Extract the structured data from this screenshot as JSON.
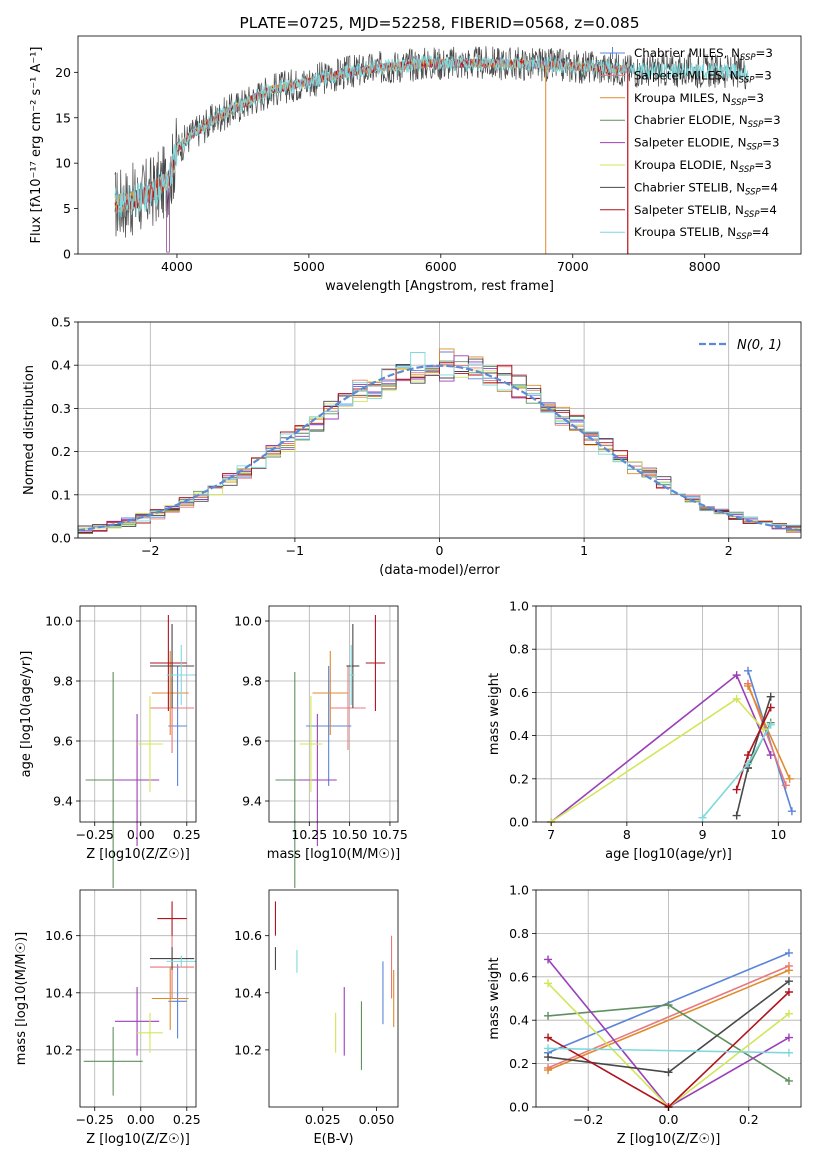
{
  "colors": {
    "chabrier_miles": "#5b84d8",
    "salpeter_miles": "#e8787e",
    "kroupa_miles": "#e08a2c",
    "chabrier_elodie": "#5f8f5f",
    "salpeter_elodie": "#9a3fb8",
    "kroupa_elodie": "#d2e65a",
    "chabrier_stelib": "#484848",
    "salpeter_stelib": "#b0141e",
    "kroupa_stelib": "#7fd9dc",
    "gaussian": "#5b8ad6",
    "grid": "#b0b0b0"
  },
  "chart_data": [
    {
      "id": "spectrum",
      "type": "line",
      "title": "PLATE=0725, MJD=52258, FIBERID=0568, z=0.085",
      "xlabel": "wavelength [Angstrom, rest frame]",
      "ylabel": "Flux [fλ10⁻¹⁷ erg cm⁻² s⁻¹ A⁻¹]",
      "xlim": [
        3250,
        8730
      ],
      "ylim": [
        0,
        24
      ],
      "xticks": [
        "4000",
        "5000",
        "6000",
        "7000",
        "8000"
      ],
      "yticks": [
        "0",
        "5",
        "10",
        "15",
        "20"
      ],
      "grid": false,
      "legend_position": "right",
      "legend": [
        "Chabrier MILES, NSSP=3",
        "Salpeter MILES, NSSP=3",
        "Kroupa MILES, NSSP=3",
        "Chabrier ELODIE, NSSP=3",
        "Salpeter ELODIE, NSSP=3",
        "Kroupa ELODIE, NSSP=3",
        "Chabrier STELIB, NSSP=4",
        "Salpeter STELIB, NSSP=4",
        "Kroupa STELIB, NSSP=4"
      ],
      "continuum": {
        "x": [
          3530,
          3700,
          3850,
          3950,
          4000,
          4100,
          4300,
          4500,
          4700,
          5000,
          5300,
          5600,
          5900,
          6200,
          6500,
          6800,
          7100,
          7300,
          7500,
          8000,
          8400
        ],
        "y": [
          5.5,
          6.0,
          7.2,
          8.5,
          11.5,
          13.0,
          15.0,
          16.5,
          18.0,
          19.0,
          20.0,
          20.6,
          21.0,
          21.0,
          21.0,
          20.8,
          20.6,
          20.4,
          20.2,
          20.2,
          20.0
        ]
      }
    },
    {
      "id": "residuals",
      "type": "histogram",
      "xlabel": "(data-model)/error",
      "ylabel": "Normed distribution",
      "xlim": [
        -2.5,
        2.5
      ],
      "ylim": [
        0,
        0.5
      ],
      "xticks": [
        "−2",
        "−1",
        "0",
        "1",
        "2"
      ],
      "yticks": [
        "0.0",
        "0.1",
        "0.2",
        "0.3",
        "0.4",
        "0.5"
      ],
      "grid": true,
      "legend_position": "top-right",
      "legend": [
        "N(0, 1)"
      ],
      "bin_width": 0.1
    },
    {
      "id": "age_vs_Z",
      "type": "errorbar",
      "xlabel": "Z [log10(Z/Z☉)]",
      "ylabel": "age  [log10(age/yr)]",
      "xlim": [
        -0.33,
        0.3
      ],
      "ylim": [
        9.33,
        10.05
      ],
      "xticks": [
        "−0.25",
        "0.00",
        "0.25"
      ],
      "yticks": [
        "9.4",
        "9.6",
        "9.8",
        "10.0"
      ],
      "grid": true,
      "points": [
        {
          "series": "chabrier_miles",
          "x": 0.2,
          "xerr": 0.05,
          "y": 9.65,
          "yerr": 0.2
        },
        {
          "series": "salpeter_miles",
          "x": 0.17,
          "xerr": 0.12,
          "y": 9.71,
          "yerr": 0.15
        },
        {
          "series": "kroupa_miles",
          "x": 0.16,
          "xerr": 0.1,
          "y": 9.76,
          "yerr": 0.14
        },
        {
          "series": "chabrier_elodie",
          "x": -0.15,
          "xerr": 0.15,
          "y": 9.47,
          "yerr": 0.36
        },
        {
          "series": "salpeter_elodie",
          "x": -0.02,
          "xerr": 0.12,
          "y": 9.47,
          "yerr": 0.22
        },
        {
          "series": "kroupa_elodie",
          "x": 0.05,
          "xerr": 0.07,
          "y": 9.59,
          "yerr": 0.16
        },
        {
          "series": "chabrier_stelib",
          "x": 0.17,
          "xerr": 0.12,
          "y": 9.85,
          "yerr": 0.14
        },
        {
          "series": "salpeter_stelib",
          "x": 0.15,
          "xerr": 0.1,
          "y": 9.86,
          "yerr": 0.16
        },
        {
          "series": "kroupa_stelib",
          "x": 0.22,
          "xerr": 0.08,
          "y": 9.82,
          "yerr": 0.1
        }
      ]
    },
    {
      "id": "age_vs_mass",
      "type": "errorbar",
      "xlabel": "mass [log10(M/M☉)]",
      "ylabel": "",
      "xlim": [
        10.0,
        10.8
      ],
      "ylim": [
        9.33,
        10.05
      ],
      "xticks": [
        "10.25",
        "10.50",
        "10.75"
      ],
      "yticks": [
        "9.4",
        "9.6",
        "9.8",
        "10.0"
      ],
      "grid": true,
      "points": [
        {
          "series": "chabrier_miles",
          "x": 10.37,
          "xerr": 0.14,
          "y": 9.65,
          "yerr": 0.2
        },
        {
          "series": "salpeter_miles",
          "x": 10.49,
          "xerr": 0.11,
          "y": 9.71,
          "yerr": 0.14
        },
        {
          "series": "kroupa_miles",
          "x": 10.38,
          "xerr": 0.11,
          "y": 9.76,
          "yerr": 0.14
        },
        {
          "series": "chabrier_elodie",
          "x": 10.16,
          "xerr": 0.12,
          "y": 9.47,
          "yerr": 0.36
        },
        {
          "series": "salpeter_elodie",
          "x": 10.3,
          "xerr": 0.12,
          "y": 9.47,
          "yerr": 0.22
        },
        {
          "series": "kroupa_elodie",
          "x": 10.26,
          "xerr": 0.07,
          "y": 9.59,
          "yerr": 0.16
        },
        {
          "series": "chabrier_stelib",
          "x": 10.52,
          "xerr": 0.04,
          "y": 9.85,
          "yerr": 0.14
        },
        {
          "series": "salpeter_stelib",
          "x": 10.66,
          "xerr": 0.06,
          "y": 9.86,
          "yerr": 0.16
        },
        {
          "series": "kroupa_stelib",
          "x": 10.51,
          "xerr": 0.02,
          "y": 9.82,
          "yerr": 0.1
        }
      ]
    },
    {
      "id": "weight_vs_age",
      "type": "line",
      "xlabel": "age  [log10(age/yr)]",
      "ylabel": "mass weight",
      "xlim": [
        6.8,
        10.3
      ],
      "ylim": [
        0,
        1.0
      ],
      "xticks": [
        "7",
        "8",
        "9",
        "10"
      ],
      "yticks": [
        "0.0",
        "0.2",
        "0.4",
        "0.6",
        "0.8",
        "1.0"
      ],
      "grid": true,
      "series": [
        {
          "series": "chabrier_miles",
          "x": [
            9.6,
            10.18
          ],
          "y": [
            0.7,
            0.05
          ]
        },
        {
          "series": "salpeter_miles",
          "x": [
            9.6,
            10.1
          ],
          "y": [
            0.64,
            0.17
          ]
        },
        {
          "series": "kroupa_miles",
          "x": [
            9.6,
            10.15
          ],
          "y": [
            0.63,
            0.2
          ]
        },
        {
          "series": "chabrier_elodie",
          "x": [
            9.6,
            9.9
          ],
          "y": [
            0.25,
            0.46
          ]
        },
        {
          "series": "salpeter_elodie",
          "x": [
            7.0,
            9.45,
            9.9
          ],
          "y": [
            0.0,
            0.68,
            0.31
          ]
        },
        {
          "series": "kroupa_elodie",
          "x": [
            7.0,
            9.45,
            9.8
          ],
          "y": [
            0.0,
            0.57,
            0.43
          ]
        },
        {
          "series": "chabrier_stelib",
          "x": [
            9.45,
            9.6,
            9.9
          ],
          "y": [
            0.03,
            0.25,
            0.58
          ]
        },
        {
          "series": "salpeter_stelib",
          "x": [
            9.45,
            9.6,
            9.9
          ],
          "y": [
            0.15,
            0.31,
            0.53
          ]
        },
        {
          "series": "kroupa_stelib",
          "x": [
            9.0,
            9.6,
            9.9
          ],
          "y": [
            0.02,
            0.27,
            0.45
          ]
        }
      ]
    },
    {
      "id": "mass_vs_Z",
      "type": "errorbar",
      "xlabel": "Z [log10(Z/Z☉)]",
      "ylabel": "mass [log10(M/M☉)]",
      "xlim": [
        -0.33,
        0.3
      ],
      "ylim": [
        10.0,
        10.76
      ],
      "xticks": [
        "−0.25",
        "0.00",
        "0.25"
      ],
      "yticks": [
        "10.2",
        "10.4",
        "10.6"
      ],
      "grid": true,
      "points": [
        {
          "series": "chabrier_miles",
          "x": 0.2,
          "xerr": 0.05,
          "y": 10.37,
          "yerr": 0.13
        },
        {
          "series": "salpeter_miles",
          "x": 0.17,
          "xerr": 0.12,
          "y": 10.49,
          "yerr": 0.11
        },
        {
          "series": "kroupa_miles",
          "x": 0.16,
          "xerr": 0.1,
          "y": 10.38,
          "yerr": 0.11
        },
        {
          "series": "chabrier_elodie",
          "x": -0.15,
          "xerr": 0.16,
          "y": 10.16,
          "yerr": 0.12
        },
        {
          "series": "salpeter_elodie",
          "x": -0.02,
          "xerr": 0.12,
          "y": 10.3,
          "yerr": 0.12
        },
        {
          "series": "kroupa_elodie",
          "x": 0.05,
          "xerr": 0.07,
          "y": 10.26,
          "yerr": 0.07
        },
        {
          "series": "chabrier_stelib",
          "x": 0.17,
          "xerr": 0.12,
          "y": 10.52,
          "yerr": 0.04
        },
        {
          "series": "salpeter_stelib",
          "x": 0.17,
          "xerr": 0.08,
          "y": 10.66,
          "yerr": 0.06
        },
        {
          "series": "kroupa_stelib",
          "x": 0.22,
          "xerr": 0.08,
          "y": 10.51,
          "yerr": 0.02
        }
      ]
    },
    {
      "id": "mass_vs_ebv",
      "type": "errorbar",
      "xlabel": "E(B-V)",
      "ylabel": "",
      "xlim": [
        0.0,
        0.06
      ],
      "ylim": [
        10.0,
        10.76
      ],
      "xticks": [
        "0.025",
        "0.050"
      ],
      "yticks": [
        "10.2",
        "10.4",
        "10.6"
      ],
      "grid": false,
      "points": [
        {
          "series": "chabrier_miles",
          "x": 0.053,
          "y": 10.4,
          "yerr": 0.11
        },
        {
          "series": "salpeter_miles",
          "x": 0.057,
          "y": 10.49,
          "yerr": 0.11
        },
        {
          "series": "kroupa_miles",
          "x": 0.058,
          "y": 10.38,
          "yerr": 0.1
        },
        {
          "series": "chabrier_elodie",
          "x": 0.043,
          "y": 10.25,
          "yerr": 0.12
        },
        {
          "series": "salpeter_elodie",
          "x": 0.035,
          "y": 10.3,
          "yerr": 0.12
        },
        {
          "series": "kroupa_elodie",
          "x": 0.031,
          "y": 10.26,
          "yerr": 0.07
        },
        {
          "series": "chabrier_stelib",
          "x": 0.003,
          "y": 10.52,
          "yerr": 0.04
        },
        {
          "series": "salpeter_stelib",
          "x": 0.003,
          "y": 10.66,
          "yerr": 0.06
        },
        {
          "series": "kroupa_stelib",
          "x": 0.013,
          "y": 10.51,
          "yerr": 0.04
        }
      ]
    },
    {
      "id": "weight_vs_Z",
      "type": "line",
      "xlabel": "Z [log10(Z/Z☉)]",
      "ylabel": "mass weight",
      "xlim": [
        -0.33,
        0.33
      ],
      "ylim": [
        0,
        1.0
      ],
      "xticks": [
        "−0.2",
        "0.0",
        "0.2"
      ],
      "yticks": [
        "0.0",
        "0.2",
        "0.4",
        "0.6",
        "0.8",
        "1.0"
      ],
      "grid": true,
      "series": [
        {
          "series": "chabrier_miles",
          "x": [
            -0.3,
            0.3
          ],
          "y": [
            0.25,
            0.71
          ]
        },
        {
          "series": "salpeter_miles",
          "x": [
            -0.3,
            0.3
          ],
          "y": [
            0.18,
            0.65
          ]
        },
        {
          "series": "kroupa_miles",
          "x": [
            -0.3,
            0.3
          ],
          "y": [
            0.17,
            0.63
          ]
        },
        {
          "series": "chabrier_elodie",
          "x": [
            -0.3,
            0.0,
            0.3
          ],
          "y": [
            0.42,
            0.47,
            0.12
          ]
        },
        {
          "series": "salpeter_elodie",
          "x": [
            -0.3,
            0.0,
            0.3
          ],
          "y": [
            0.68,
            0.0,
            0.32
          ]
        },
        {
          "series": "kroupa_elodie",
          "x": [
            -0.3,
            0.0,
            0.3
          ],
          "y": [
            0.57,
            0.0,
            0.43
          ]
        },
        {
          "series": "chabrier_stelib",
          "x": [
            -0.3,
            0.0,
            0.3
          ],
          "y": [
            0.23,
            0.16,
            0.58
          ]
        },
        {
          "series": "salpeter_stelib",
          "x": [
            -0.3,
            0.0,
            0.3
          ],
          "y": [
            0.32,
            0.0,
            0.53
          ]
        },
        {
          "series": "kroupa_stelib",
          "x": [
            -0.3,
            0.3
          ],
          "y": [
            0.27,
            0.25
          ]
        }
      ]
    }
  ]
}
